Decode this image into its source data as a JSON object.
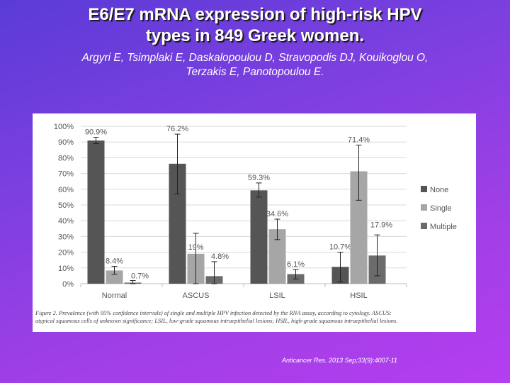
{
  "slide": {
    "title_line1": "E6/E7 mRNA expression of high-risk HPV",
    "title_line2": "types in 849 Greek women.",
    "authors_line1": "Argyri E, Tsimplaki E, Daskalopoulou D, Stravopodis DJ, Kouikoglou O,",
    "authors_line2": "Terzakis E, Panotopoulou E.",
    "citation": "Anticancer Res. 2013 Sep;33(9):4007-11"
  },
  "figure": {
    "caption_line1": "Figure 2. Prevalence (with 95% confidence intervals) of single and multiple HPV infection detected by the RNA assay, according to cytology. ASCUS:",
    "caption_line2": "atypical squamous cells of unknown significance; LSIL, low-grade squamous intraepithelial lesions; HSIL, high-grade squamous intraepithelial lesions."
  },
  "colors": {
    "none": "#555555",
    "single": "#a6a6a6",
    "multiple": "#6b6b6b"
  },
  "chart_data": {
    "type": "bar",
    "categories": [
      "Normal",
      "ASCUS",
      "LSIL",
      "HSIL"
    ],
    "series": [
      {
        "name": "None",
        "values": [
          90.9,
          76.2,
          59.3,
          10.7
        ],
        "labels": [
          "90.9%",
          "76.2%",
          "59.3%",
          "10.7%"
        ],
        "err_low": [
          89,
          57,
          55,
          1
        ],
        "err_high": [
          93,
          95,
          64,
          20
        ]
      },
      {
        "name": "Single",
        "values": [
          8.4,
          19,
          34.6,
          71.4
        ],
        "labels": [
          "8.4%",
          "19%",
          "34.6%",
          "71.4%"
        ],
        "err_low": [
          6,
          0,
          28,
          53
        ],
        "err_high": [
          11,
          32,
          41,
          88
        ]
      },
      {
        "name": "Multiple",
        "values": [
          0.7,
          4.8,
          6.1,
          17.9
        ],
        "labels": [
          "0.7%",
          "4.8%",
          "6.1%",
          ""
        ],
        "err_low": [
          0,
          0,
          3,
          5
        ],
        "err_high": [
          2,
          14,
          9,
          31
        ]
      }
    ],
    "hsil_multiple_label": "17.9%",
    "y_ticks": [
      "0%",
      "10%",
      "20%",
      "30%",
      "40%",
      "50%",
      "60%",
      "70%",
      "80%",
      "90%",
      "100%"
    ],
    "ylim": [
      0,
      100
    ],
    "legend": [
      "None",
      "Single",
      "Multiple"
    ]
  }
}
